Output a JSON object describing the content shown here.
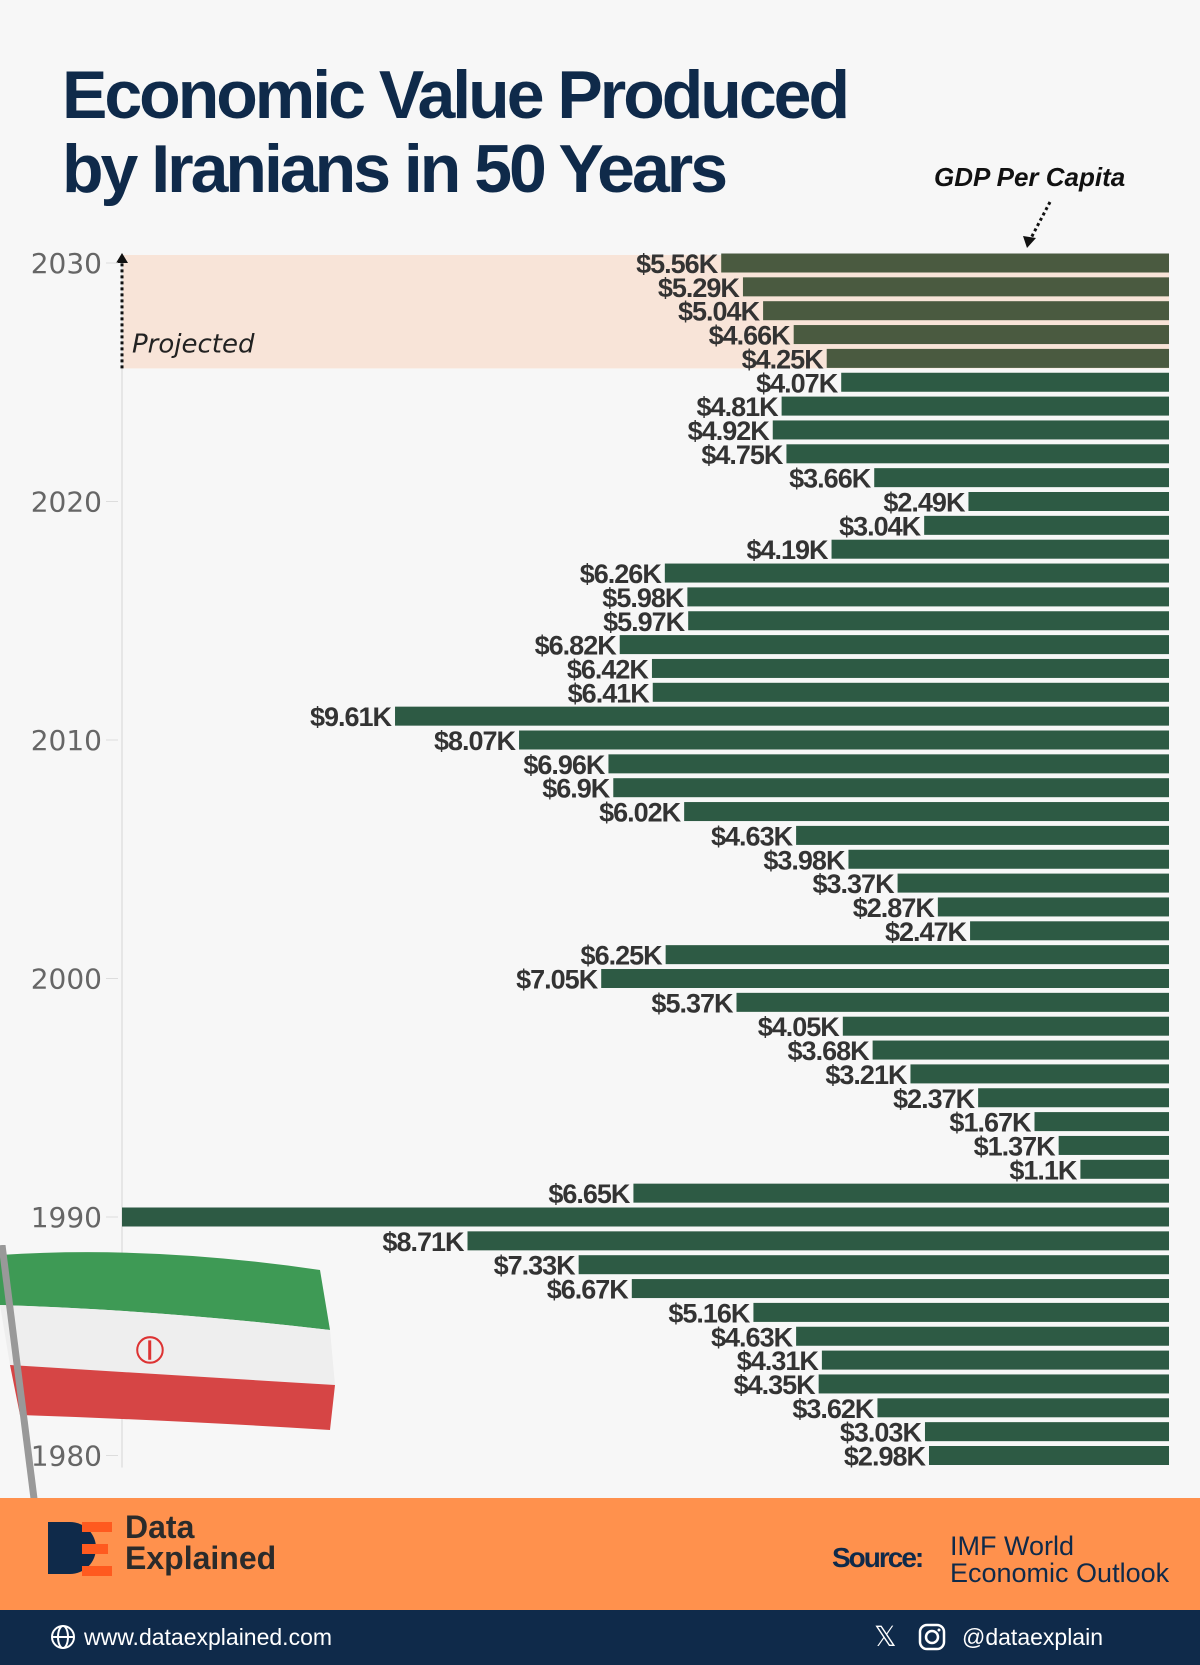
{
  "title_line1": "Economic Value Produced",
  "title_line2": "by Iranians in 50 Years",
  "footer": {
    "brand_line1": "Data",
    "brand_line2": "Explained",
    "source_label": "Source:",
    "source_line1": "IMF World",
    "source_line2": "Economic Outlook",
    "website": "www.dataexplained.com",
    "handle": "@dataexplain",
    "icons": [
      "globe-icon",
      "x-logo-icon",
      "instagram-icon"
    ]
  },
  "colors": {
    "bar": "#2d5a44",
    "projected_bar": "#4a5a40",
    "projected_band": "#f8e4d8",
    "title": "#0f2a4a",
    "footer": "#ff914d",
    "bottom_bar": "#0f2a4a"
  },
  "chart_data": {
    "type": "bar",
    "orientation": "horizontal",
    "legend_label": "GDP Per Capita",
    "annotation": "Projected",
    "projected_years": [
      2026,
      2027,
      2028,
      2029,
      2030
    ],
    "y_tick_labels": [
      "2030",
      "2020",
      "2010",
      "2000",
      "1990",
      "1980"
    ],
    "grid": false,
    "years": [
      2030,
      2029,
      2028,
      2027,
      2026,
      2025,
      2024,
      2023,
      2022,
      2021,
      2020,
      2019,
      2018,
      2017,
      2016,
      2015,
      2014,
      2013,
      2012,
      2011,
      2010,
      2009,
      2008,
      2007,
      2006,
      2005,
      2004,
      2003,
      2002,
      2001,
      2000,
      1999,
      1998,
      1997,
      1996,
      1995,
      1994,
      1993,
      1992,
      1991,
      1990,
      1989,
      1988,
      1987,
      1986,
      1985,
      1984,
      1983,
      1982,
      1981,
      1980
    ],
    "values": [
      5.56,
      5.29,
      5.04,
      4.66,
      4.25,
      4.07,
      4.81,
      4.92,
      4.75,
      3.66,
      2.49,
      3.04,
      4.19,
      6.26,
      5.98,
      5.97,
      6.82,
      6.42,
      6.41,
      9.61,
      8.07,
      6.96,
      6.9,
      6.02,
      4.63,
      3.98,
      3.37,
      2.87,
      2.47,
      6.25,
      7.05,
      5.37,
      4.05,
      3.68,
      3.21,
      2.37,
      1.67,
      1.37,
      1.1,
      6.65,
      13.0,
      8.71,
      7.33,
      6.67,
      5.16,
      4.63,
      4.31,
      4.35,
      3.62,
      3.03,
      2.98
    ],
    "labels": [
      "$5.56K",
      "$5.29K",
      "$5.04K",
      "$4.66K",
      "$4.25K",
      "$4.07K",
      "$4.81K",
      "$4.92K",
      "$4.75K",
      "$3.66K",
      "$2.49K",
      "$3.04K",
      "$4.19K",
      "$6.26K",
      "$5.98K",
      "$5.97K",
      "$6.82K",
      "$6.42K",
      "$6.41K",
      "$9.61K",
      "$8.07K",
      "$6.96K",
      "$6.9K",
      "$6.02K",
      "$4.63K",
      "$3.98K",
      "$3.37K",
      "$2.87K",
      "$2.47K",
      "$6.25K",
      "$7.05K",
      "$5.37K",
      "$4.05K",
      "$3.68K",
      "$3.21K",
      "$2.37K",
      "$1.67K",
      "$1.37K",
      "$1.1K",
      "$6.65K",
      "",
      "$8.71K",
      "$7.33K",
      "$6.67K",
      "$5.16K",
      "$4.63K",
      "$4.31K",
      "$4.35K",
      "$3.62K",
      "$3.03K",
      "$2.98K"
    ]
  }
}
